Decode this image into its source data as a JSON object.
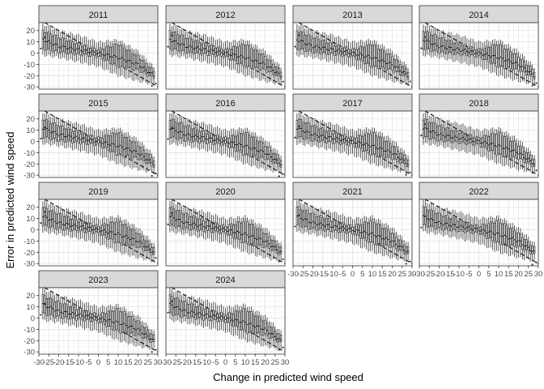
{
  "chart_data": {
    "type": "boxplot",
    "xlabel": "Change in predicted wind speed",
    "ylabel": "Error in predicted wind speed",
    "xlim": [
      -30,
      30
    ],
    "ylim": [
      -32,
      27
    ],
    "x_ticks": [
      -30,
      -25,
      -20,
      -15,
      -10,
      -5,
      0,
      5,
      10,
      15,
      20,
      25,
      30
    ],
    "y_ticks": [
      20,
      10,
      0,
      -10,
      -20,
      -30
    ],
    "grid": true,
    "facet_strips": [
      "2011",
      "2012",
      "2013",
      "2014",
      "2015",
      "2016",
      "2017",
      "2018",
      "2019",
      "2020",
      "2021",
      "2022",
      "2023",
      "2024"
    ],
    "reference_line": {
      "slope": -1,
      "intercept": 0,
      "style": "dashed"
    },
    "box_x_range": [
      -28,
      28
    ],
    "box_step": 1,
    "profile": {
      "x": [
        -28,
        -20,
        -10,
        0,
        10,
        20,
        28
      ],
      "median": [
        12,
        6,
        3,
        0,
        -4,
        -10,
        -20
      ],
      "q1": [
        4,
        1,
        -1,
        -3,
        -12,
        -15,
        -22
      ],
      "q3": [
        20,
        14,
        8,
        3,
        8,
        -3,
        -16
      ],
      "lower_whisker": [
        -2,
        -4,
        -8,
        -12,
        -20,
        -25,
        -28
      ],
      "upper_whisker": [
        26,
        20,
        16,
        10,
        12,
        2,
        -12
      ]
    }
  }
}
